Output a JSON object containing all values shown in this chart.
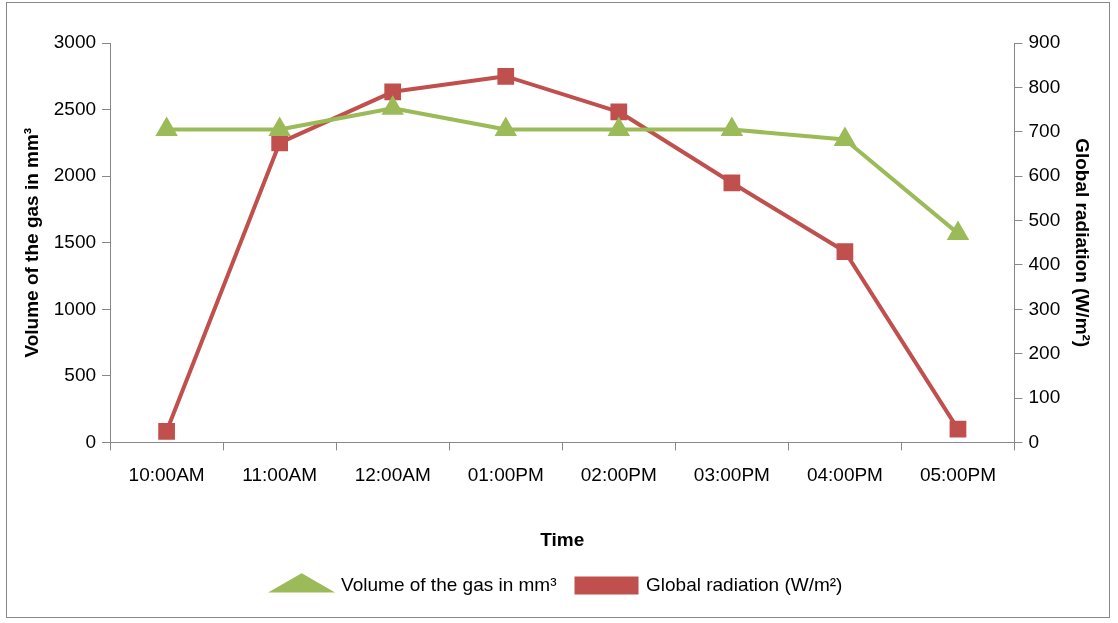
{
  "chart_data": {
    "type": "line",
    "xlabel": "Time",
    "ylabel": "Volume of the gas in mm³",
    "y2label": "Global radiation (W/m²)",
    "categories": [
      "10:00AM",
      "11:00AM",
      "12:00AM",
      "01:00PM",
      "02:00PM",
      "03:00PM",
      "04:00PM",
      "05:00PM"
    ],
    "series": [
      {
        "name": "Volume of the gas in mm³",
        "color": "#9bbb59",
        "marker": "triangle",
        "values": [
          2350,
          2350,
          2510,
          2350,
          2350,
          2350,
          2275,
          1570
        ]
      },
      {
        "name": "Global radiation (W/m²)",
        "color": "#c0504d",
        "marker": "square",
        "axis": "y2",
        "values": [
          25,
          675,
          790,
          825,
          745,
          585,
          430,
          30
        ]
      }
    ],
    "ylim": [
      0,
      3000
    ],
    "yticks": [
      0,
      500,
      1000,
      1500,
      2000,
      2500,
      3000
    ],
    "y2lim": [
      0,
      900
    ],
    "y2ticks": [
      0,
      100,
      200,
      300,
      400,
      500,
      600,
      700,
      800,
      900
    ],
    "grid": false,
    "legend": "bottom",
    "line_style": "solid"
  }
}
